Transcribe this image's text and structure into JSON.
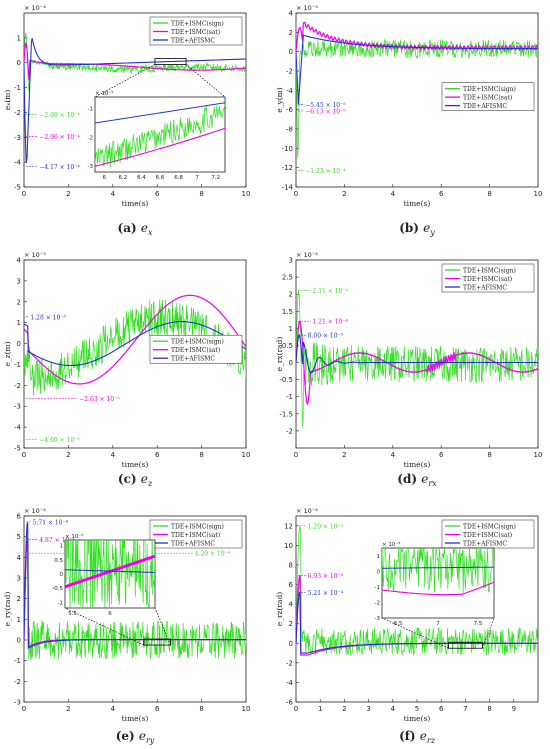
{
  "colors": {
    "sign": "#33dd22",
    "sat": "#ee00ee",
    "afismc": "#2233cc",
    "axis": "#222222",
    "zoom": "#000000"
  },
  "legend": [
    "TDE+ISMC(sign)",
    "TDE+ISMC(sat)",
    "TDE+AFISMC"
  ],
  "chart_data": [
    {
      "type": "line",
      "panel_label": "(a)",
      "caption_var": "e",
      "caption_sub": "x",
      "exponent": "× 10⁻⁴",
      "ylabel": "eₓ(m)",
      "xlabel": "time(s)",
      "xlim": [
        0,
        10
      ],
      "ylim": [
        -5,
        2
      ],
      "yticks": [
        -5,
        -4,
        -3,
        -2,
        -1,
        0,
        1
      ],
      "xticks": [
        0,
        2,
        4,
        6,
        8,
        10
      ],
      "legend_pos": "top-right",
      "annotations": [
        {
          "text": "−2.08 × 10⁻⁴",
          "x": 0.6,
          "y": -2.08,
          "series": "sign"
        },
        {
          "text": "−2.96 × 10⁻⁴",
          "x": 0.6,
          "y": -2.96,
          "series": "sat"
        },
        {
          "text": "−4.17 × 10⁻⁴",
          "x": 0.6,
          "y": -4.17,
          "series": "afismc"
        }
      ],
      "inset": {
        "xlim": [
          5.9,
          7.3
        ],
        "ylim": [
          -3.2,
          -0.6
        ],
        "xticks": [
          6,
          6.2,
          6.4,
          6.6,
          6.8,
          7,
          7.2
        ],
        "yticks": [
          -3,
          -2,
          -1
        ],
        "exponent": "× 10⁻⁵"
      }
    },
    {
      "type": "line",
      "panel_label": "(b)",
      "caption_var": "e",
      "caption_sub": "y",
      "exponent": "× 10⁻⁵",
      "ylabel": "e_y(m)",
      "xlabel": "time(s)",
      "xlim": [
        0,
        10
      ],
      "ylim": [
        -14,
        4
      ],
      "yticks": [
        -14,
        -12,
        -10,
        -8,
        -6,
        -4,
        -2,
        0,
        2,
        4
      ],
      "xticks": [
        0,
        2,
        4,
        6,
        8,
        10
      ],
      "legend_pos": "middle-right",
      "annotations": [
        {
          "text": "−5.45 × 10⁻⁵",
          "x": 0.3,
          "y": -5.45,
          "series": "afismc"
        },
        {
          "text": "−6.13 × 10⁻⁵",
          "x": 0.3,
          "y": -6.13,
          "series": "sat"
        },
        {
          "text": "−1.23 × 10⁻⁴",
          "x": 0.3,
          "y": -12.3,
          "series": "sign"
        }
      ]
    },
    {
      "type": "line",
      "panel_label": "(c)",
      "caption_var": "e",
      "caption_sub": "z",
      "exponent": "× 10⁻⁵",
      "ylabel": "e_z(m)",
      "xlabel": "time(s)",
      "xlim": [
        0,
        10
      ],
      "ylim": [
        -5,
        4
      ],
      "yticks": [
        -5,
        -4,
        -3,
        -2,
        -1,
        0,
        1,
        2,
        3,
        4
      ],
      "xticks": [
        0,
        2,
        4,
        6,
        8,
        10
      ],
      "legend_pos": "middle-right",
      "annotations": [
        {
          "text": "1.28 × 10⁻⁵",
          "x": 0.2,
          "y": 1.28,
          "series": "afismc"
        },
        {
          "text": "−2.63 × 10⁻⁵",
          "x": 2.4,
          "y": -2.63,
          "series": "sat"
        },
        {
          "text": "−4.60 × 10⁻⁵",
          "x": 0.6,
          "y": -4.6,
          "series": "sign"
        }
      ]
    },
    {
      "type": "line",
      "panel_label": "(d)",
      "caption_var": "e",
      "caption_sub": "rx",
      "exponent": "× 10⁻⁴",
      "ylabel": "e_rx(rad)",
      "xlabel": "time(s)",
      "xlim": [
        0,
        10
      ],
      "ylim": [
        -2.5,
        3
      ],
      "yticks": [
        -2,
        -1.5,
        -1,
        -0.5,
        0,
        0.5,
        1,
        1.5,
        2,
        2.5,
        3
      ],
      "xticks": [
        0,
        2,
        4,
        6,
        8,
        10
      ],
      "legend_pos": "top-right",
      "annotations": [
        {
          "text": "2.11 × 10⁻⁴",
          "x": 0.6,
          "y": 2.11,
          "series": "sign"
        },
        {
          "text": "1.21 × 10⁻⁴",
          "x": 0.6,
          "y": 1.21,
          "series": "sat"
        },
        {
          "text": "8.00 × 10⁻⁵",
          "x": 0.4,
          "y": 0.8,
          "series": "afismc"
        }
      ]
    },
    {
      "type": "line",
      "panel_label": "(e)",
      "caption_var": "e",
      "caption_sub": "ry",
      "exponent": "× 10⁻⁴",
      "ylabel": "e_ry(rad)",
      "xlabel": "time(s)",
      "xlim": [
        0,
        10
      ],
      "ylim": [
        -3,
        6
      ],
      "yticks": [
        -3,
        -2,
        -1,
        0,
        1,
        2,
        3,
        4,
        5,
        6
      ],
      "xticks": [
        0,
        2,
        4,
        6,
        8,
        10
      ],
      "legend_pos": "top-right",
      "annotations": [
        {
          "text": "5.71 × 10⁻⁴",
          "x": 0.3,
          "y": 5.71,
          "series": "afismc"
        },
        {
          "text": "4.87 × 10⁻⁴",
          "x": 0.6,
          "y": 4.87,
          "series": "sat"
        },
        {
          "text": "4.20 × 10⁻⁴",
          "x": 7.6,
          "y": 4.2,
          "series": "sign"
        }
      ],
      "inset": {
        "xlim": [
          5.4,
          6.6
        ],
        "ylim": [
          -1.2,
          1.2
        ],
        "xticks": [
          5.5,
          6
        ],
        "yticks": [
          -1,
          -0.5,
          0,
          0.5,
          1
        ],
        "exponent": "× 10⁻⁵"
      }
    },
    {
      "type": "line",
      "panel_label": "(f)",
      "caption_var": "e",
      "caption_sub": "rz",
      "exponent": "× 10⁻⁴",
      "ylabel": "e_rz(rad)",
      "xlabel": "time(s)",
      "xlim": [
        0,
        10
      ],
      "ylim": [
        -6,
        13
      ],
      "yticks": [
        -6,
        -4,
        -2,
        0,
        2,
        4,
        6,
        8,
        10,
        12
      ],
      "xticks": [
        0,
        1,
        2,
        3,
        4,
        5,
        6,
        7,
        8,
        9
      ],
      "legend_pos": "top-right",
      "annotations": [
        {
          "text": "1.20 × 10⁻³",
          "x": 0.4,
          "y": 12,
          "series": "sign"
        },
        {
          "text": "6.93 × 10⁻⁴",
          "x": 0.4,
          "y": 6.93,
          "series": "sat"
        },
        {
          "text": "5.21 × 10⁻⁴",
          "x": 0.4,
          "y": 5.21,
          "series": "afismc"
        }
      ],
      "inset": {
        "xlim": [
          6.3,
          7.7
        ],
        "ylim": [
          -3,
          1.5
        ],
        "xticks": [
          6.5,
          7,
          7.5
        ],
        "yticks": [
          -3,
          -2,
          -1,
          0,
          1
        ],
        "exponent": "× 10⁻⁵"
      }
    }
  ]
}
